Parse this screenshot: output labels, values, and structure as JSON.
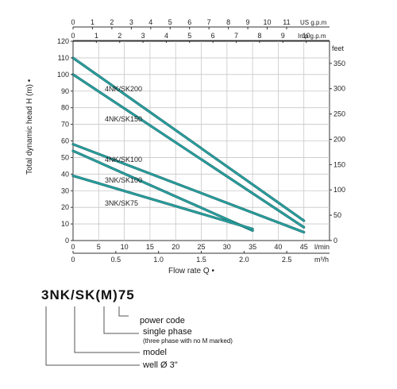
{
  "chart_data": {
    "type": "line",
    "ylabel": "Total dynamic head H (m) •",
    "xlabel": "Flow rate Q •",
    "y_left": {
      "range": [
        0,
        120
      ],
      "ticks": [
        0,
        10,
        20,
        30,
        40,
        50,
        60,
        70,
        80,
        90,
        100,
        110,
        120
      ]
    },
    "y_right": {
      "unit": "feet",
      "range": [
        0,
        393.7
      ],
      "ticks": [
        0,
        50,
        100,
        150,
        200,
        250,
        300,
        350
      ]
    },
    "x_lmin": {
      "unit": "l/min",
      "range": [
        0,
        50
      ],
      "ticks": [
        0,
        5,
        10,
        15,
        20,
        25,
        30,
        35,
        40,
        45
      ]
    },
    "x_m3h": {
      "unit": "m³/h",
      "range": [
        0,
        3
      ],
      "ticks": [
        "0",
        "0.5",
        "1.0",
        "1.5",
        "2.0",
        "2.5"
      ]
    },
    "x_usgpm": {
      "unit": "US g.p.m",
      "range": [
        0,
        13.21
      ],
      "ticks": [
        0,
        1,
        2,
        3,
        4,
        5,
        6,
        7,
        8,
        9,
        10,
        11
      ]
    },
    "x_impgpm": {
      "unit": "Imp g.p.m",
      "range": [
        0,
        11
      ],
      "ticks": [
        0,
        1,
        2,
        3,
        4,
        5,
        6,
        7,
        8,
        9,
        10
      ]
    },
    "series": [
      {
        "name": "4NK/SK200",
        "x": [
          0,
          45
        ],
        "y": [
          110,
          12
        ]
      },
      {
        "name": "4NK/SK150",
        "x": [
          0,
          45
        ],
        "y": [
          100,
          8
        ]
      },
      {
        "name": "4NK/SK100",
        "x": [
          0,
          45
        ],
        "y": [
          58,
          5
        ]
      },
      {
        "name": "3NK/SK100",
        "x": [
          0,
          35
        ],
        "y": [
          54,
          6
        ]
      },
      {
        "name": "3NK/SK75",
        "x": [
          0,
          35
        ],
        "y": [
          39,
          7
        ]
      }
    ],
    "line_color": "#2aa3a3",
    "grid": true
  },
  "legend": {
    "code": "3NK/SK(M)75",
    "items": [
      {
        "label": "power code",
        "note": ""
      },
      {
        "label": "single phase",
        "note": "(three phase with no M marked)"
      },
      {
        "label": "model",
        "note": ""
      },
      {
        "label": "well Ø 3\"",
        "note": ""
      }
    ]
  }
}
